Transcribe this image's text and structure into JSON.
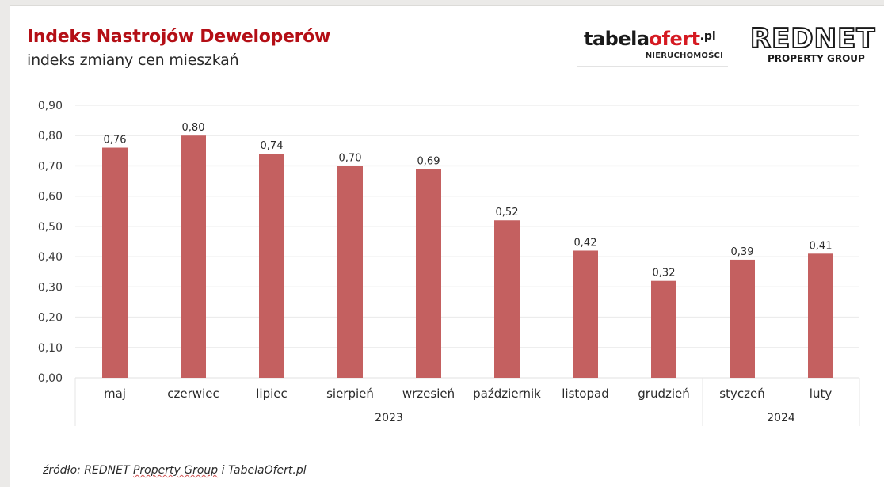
{
  "header": {
    "title": "Indeks Nastrojów Deweloperów",
    "subtitle": "indeks zmiany cen mieszkań"
  },
  "logos": {
    "tabelaofert": {
      "part1": "tabela",
      "part2": "ofert",
      "part3": ".pl",
      "tagline": "NIERUCHOMOŚCI"
    },
    "rednet": {
      "name": "REDNET",
      "tagline": "PROPERTY GROUP"
    }
  },
  "footer": {
    "source_prefix": "źródło: REDNET ",
    "source_underlined": "Property Group",
    "source_suffix": " i TabelaOfert.pl"
  },
  "colors": {
    "bar": "#c46060",
    "title": "#b40f16",
    "grid": "#ececec"
  },
  "chart_data": {
    "type": "bar",
    "title": "Indeks Nastrojów Deweloperów",
    "subtitle": "indeks zmiany cen mieszkań",
    "categories": [
      "maj",
      "czerwiec",
      "lipiec",
      "sierpień",
      "wrzesień",
      "październik",
      "listopad",
      "grudzień",
      "styczeń",
      "luty"
    ],
    "values": [
      0.76,
      0.8,
      0.74,
      0.7,
      0.69,
      0.52,
      0.42,
      0.32,
      0.39,
      0.41
    ],
    "value_labels": [
      "0,76",
      "0,80",
      "0,74",
      "0,70",
      "0,69",
      "0,52",
      "0,42",
      "0,32",
      "0,39",
      "0,41"
    ],
    "groups": [
      {
        "label": "2023",
        "count": 8
      },
      {
        "label": "2024",
        "count": 2
      }
    ],
    "ylim": [
      0,
      0.9
    ],
    "yticks": [
      0,
      0.1,
      0.2,
      0.3,
      0.4,
      0.5,
      0.6,
      0.7,
      0.8,
      0.9
    ],
    "ytick_labels": [
      "0,00",
      "0,10",
      "0,20",
      "0,30",
      "0,40",
      "0,50",
      "0,60",
      "0,70",
      "0,80",
      "0,90"
    ],
    "xlabel": "",
    "ylabel": "",
    "grid": true,
    "legend": "none"
  }
}
